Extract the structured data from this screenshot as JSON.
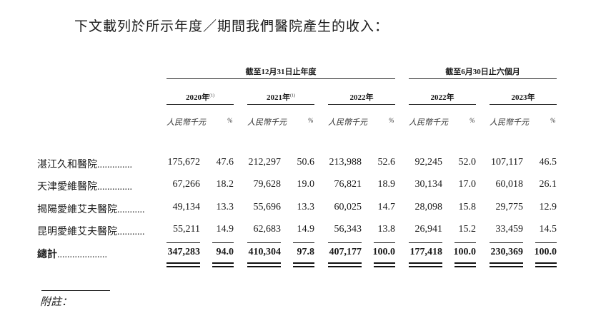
{
  "intro": "下文載列於所示年度／期間我們醫院產生的收入：",
  "groups": [
    {
      "label": "截至12月31日止年度"
    },
    {
      "label": "截至6月30日止六個月"
    }
  ],
  "years": [
    {
      "label": "2020年",
      "note": "(1)"
    },
    {
      "label": "2021年",
      "note": "(1)"
    },
    {
      "label": "2022年",
      "note": ""
    },
    {
      "label": "2022年",
      "note": ""
    },
    {
      "label": "2023年",
      "note": ""
    }
  ],
  "unit_label": "人民幣千元",
  "pct_label": "%",
  "rows": [
    {
      "name": "湛江久和醫院",
      "dots": "..............",
      "values": [
        "175,672",
        "47.6",
        "212,297",
        "50.6",
        "213,988",
        "52.6",
        "92,245",
        "52.0",
        "107,117",
        "46.5"
      ]
    },
    {
      "name": "天津愛維醫院",
      "dots": "..............",
      "values": [
        "67,266",
        "18.2",
        "79,628",
        "19.0",
        "76,821",
        "18.9",
        "30,134",
        "17.0",
        "60,018",
        "26.1"
      ]
    },
    {
      "name": "揭陽愛維艾夫醫院",
      "dots": "...........",
      "values": [
        "49,134",
        "13.3",
        "55,696",
        "13.3",
        "60,025",
        "14.7",
        "28,098",
        "15.8",
        "29,775",
        "12.9"
      ]
    },
    {
      "name": "昆明愛維艾夫醫院",
      "dots": "...........",
      "values": [
        "55,211",
        "14.9",
        "62,683",
        "14.9",
        "56,343",
        "13.8",
        "26,941",
        "15.2",
        "33,459",
        "14.5"
      ]
    }
  ],
  "total": {
    "name": "總計",
    "dots": "....................",
    "values": [
      "347,283",
      "94.0",
      "410,304",
      "97.8",
      "407,177",
      "100.0",
      "177,418",
      "100.0",
      "230,369",
      "100.0"
    ]
  },
  "note_label": "附註："
}
